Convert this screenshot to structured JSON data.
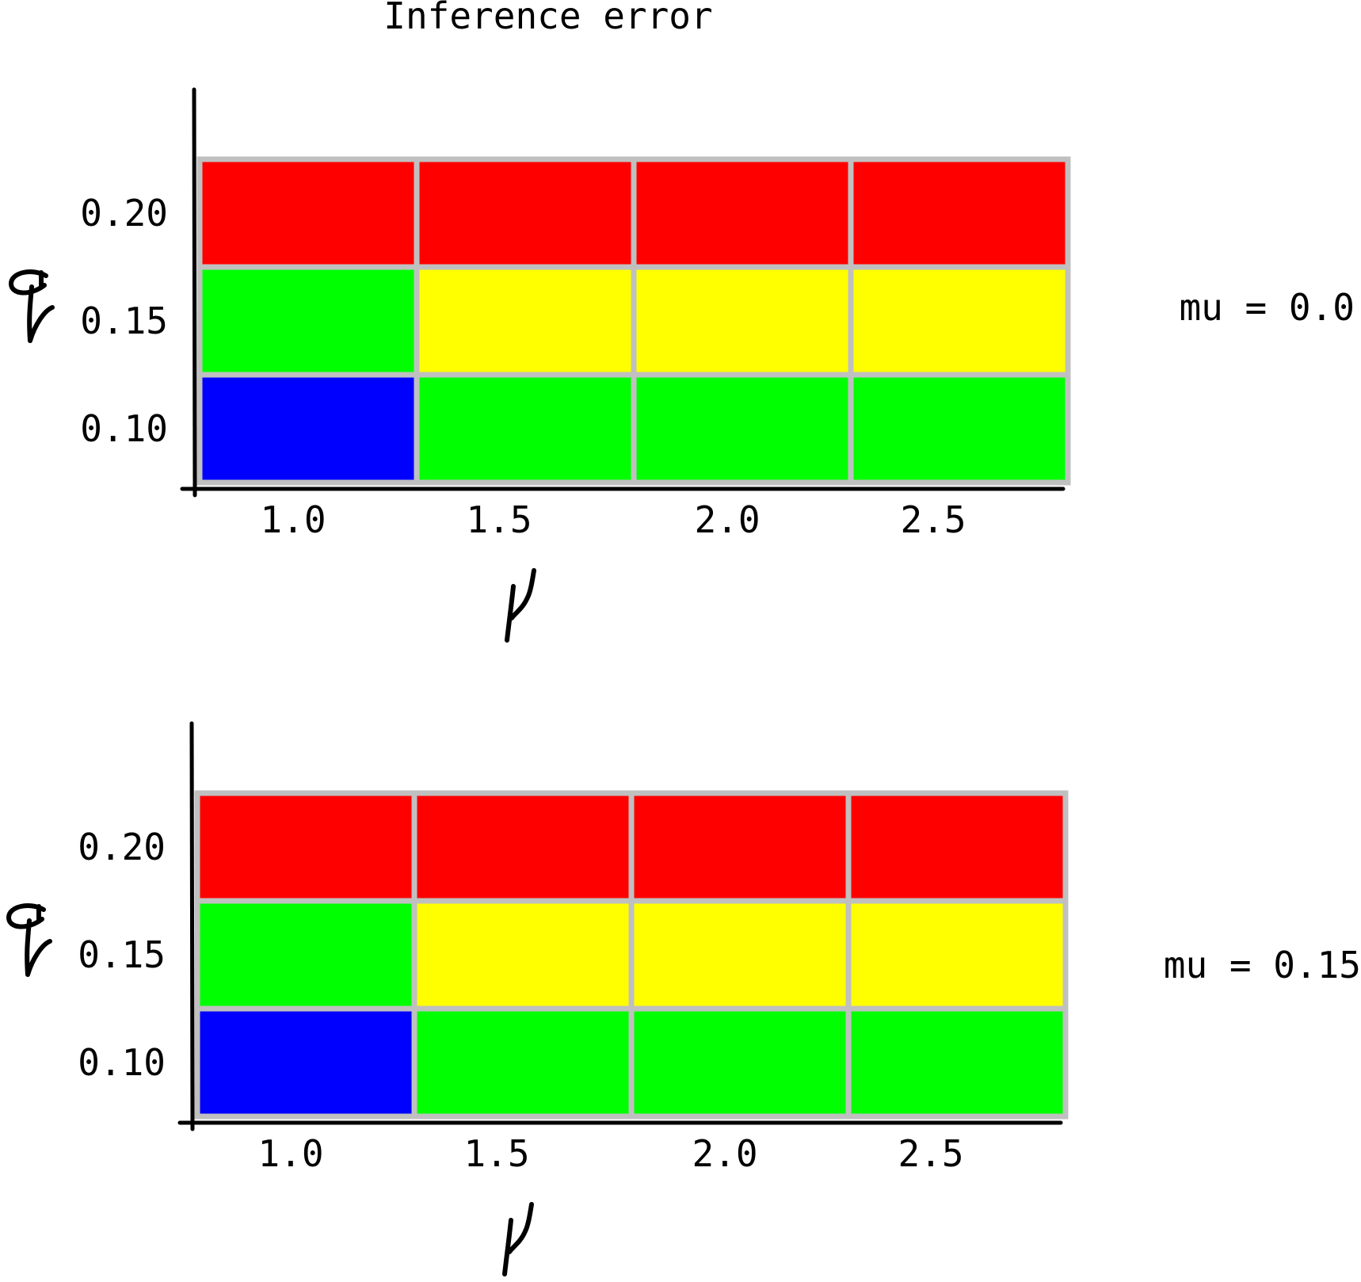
{
  "title": "Inference error",
  "chart_data": [
    {
      "type": "heatmap",
      "panel_label": "mu = 0.0",
      "x_categories": [
        "1.0",
        "1.5",
        "2.0",
        "2.5"
      ],
      "y_categories": [
        "0.20",
        "0.15",
        "0.10"
      ],
      "cell_colors": [
        [
          "#ff0000",
          "#ff0000",
          "#ff0000",
          "#ff0000"
        ],
        [
          "#00ff00",
          "#ffff00",
          "#ffff00",
          "#ffff00"
        ],
        [
          "#0000ff",
          "#00ff00",
          "#00ff00",
          "#00ff00"
        ]
      ],
      "xlabel_glyph": "nu-icon",
      "ylabel_glyph": "q-icon",
      "grid_color": "#c0c0c0",
      "legend": "none"
    },
    {
      "type": "heatmap",
      "panel_label": "mu = 0.15",
      "x_categories": [
        "1.0",
        "1.5",
        "2.0",
        "2.5"
      ],
      "y_categories": [
        "0.20",
        "0.15",
        "0.10"
      ],
      "cell_colors": [
        [
          "#ff0000",
          "#ff0000",
          "#ff0000",
          "#ff0000"
        ],
        [
          "#00ff00",
          "#ffff00",
          "#ffff00",
          "#ffff00"
        ],
        [
          "#0000ff",
          "#00ff00",
          "#00ff00",
          "#00ff00"
        ]
      ],
      "xlabel_glyph": "nu-icon",
      "ylabel_glyph": "q-icon",
      "grid_color": "#c0c0c0",
      "legend": "none"
    }
  ]
}
